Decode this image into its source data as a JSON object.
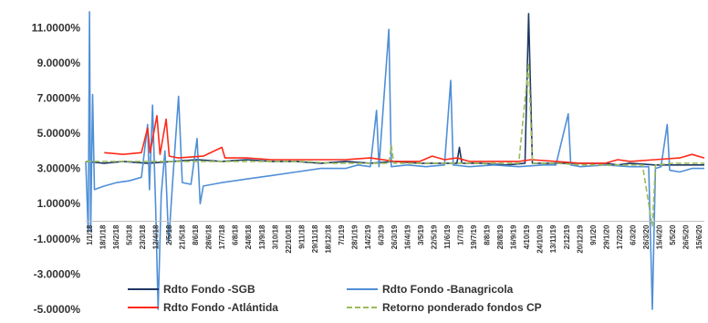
{
  "chart_data": {
    "type": "line",
    "title": "",
    "xlabel": "",
    "ylabel": "",
    "ylim": [
      -5.0,
      12.0
    ],
    "y_ticks": [
      "-5.0000%",
      "-3.0000%",
      "-1.0000%",
      "1.0000%",
      "3.0000%",
      "5.0000%",
      "7.0000%",
      "9.0000%",
      "11.0000%"
    ],
    "x_tick_labels": [
      "1/1/18",
      "18/1/18",
      "16/2/18",
      "5/3/18",
      "23/3/18",
      "12/4/18",
      "2/5/18",
      "21/5/18",
      "8/6/18",
      "28/6/18",
      "17/7/18",
      "6/8/18",
      "24/8/18",
      "13/9/18",
      "3/10/18",
      "22/10/18",
      "9/11/18",
      "29/11/18",
      "18/12/18",
      "7/1/19",
      "28/1/19",
      "14/2/19",
      "6/3/19",
      "26/3/19",
      "16/4/19",
      "3/5/19",
      "22/5/19",
      "11/6/19",
      "1/7/19",
      "19/7/19",
      "8/8/19",
      "28/8/19",
      "16/9/19",
      "4/10/19",
      "24/10/19",
      "13/11/19",
      "2/12/19",
      "20/12/19",
      "9/1/20",
      "29/1/20",
      "17/2/20",
      "6/3/20",
      "26/3/20",
      "15/4/20",
      "5/5/20",
      "26/5/20",
      "15/6/20"
    ],
    "grid": false,
    "legend_position": "bottom",
    "series": [
      {
        "name": "Rdto Fondo -SGB",
        "color": "#1f3864",
        "points": [
          [
            0,
            3.4
          ],
          [
            3,
            3.3
          ],
          [
            6,
            3.4
          ],
          [
            10,
            3.3
          ],
          [
            14,
            3.4
          ],
          [
            18,
            3.5
          ],
          [
            22,
            3.4
          ],
          [
            26,
            3.5
          ],
          [
            30,
            3.4
          ],
          [
            34,
            3.4
          ],
          [
            38,
            3.3
          ],
          [
            42,
            3.4
          ],
          [
            46,
            3.3
          ],
          [
            50,
            3.4
          ],
          [
            54,
            3.3
          ],
          [
            58,
            3.3
          ],
          [
            60,
            3.3
          ],
          [
            60.4,
            4.2
          ],
          [
            60.8,
            3.3
          ],
          [
            64,
            3.3
          ],
          [
            68,
            3.2
          ],
          [
            71,
            3.3
          ],
          [
            71.6,
            11.8
          ],
          [
            72.2,
            3.3
          ],
          [
            76,
            3.3
          ],
          [
            80,
            3.3
          ],
          [
            84,
            3.3
          ],
          [
            86,
            3.2
          ],
          [
            88,
            3.3
          ],
          [
            92,
            3.2
          ],
          [
            96,
            3.2
          ],
          [
            100,
            3.2
          ]
        ]
      },
      {
        "name": "Rdto Fondo -Banagricola",
        "color": "#4f8fd6",
        "points": [
          [
            0,
            3.4
          ],
          [
            0.4,
            -0.6
          ],
          [
            0.6,
            11.9
          ],
          [
            0.8,
            -0.6
          ],
          [
            1.1,
            7.2
          ],
          [
            1.4,
            1.8
          ],
          [
            3,
            2.0
          ],
          [
            5,
            2.2
          ],
          [
            7,
            2.3
          ],
          [
            9,
            2.5
          ],
          [
            10,
            5.5
          ],
          [
            10.3,
            1.8
          ],
          [
            10.8,
            6.6
          ],
          [
            11.3,
            0.8
          ],
          [
            11.7,
            -5.0
          ],
          [
            12.2,
            1.5
          ],
          [
            12.8,
            4.0
          ],
          [
            13.4,
            -1.2
          ],
          [
            14,
            2.0
          ],
          [
            15,
            7.1
          ],
          [
            15.6,
            2.2
          ],
          [
            17,
            2.1
          ],
          [
            18,
            4.7
          ],
          [
            18.5,
            1.0
          ],
          [
            19,
            2.0
          ],
          [
            22,
            2.2
          ],
          [
            26,
            2.4
          ],
          [
            30,
            2.6
          ],
          [
            34,
            2.8
          ],
          [
            38,
            3.0
          ],
          [
            42,
            3.0
          ],
          [
            44,
            3.2
          ],
          [
            46,
            3.1
          ],
          [
            47,
            6.3
          ],
          [
            47.4,
            3.1
          ],
          [
            49,
            10.9
          ],
          [
            49.4,
            3.1
          ],
          [
            52,
            3.2
          ],
          [
            55,
            3.1
          ],
          [
            58,
            3.2
          ],
          [
            59,
            8.0
          ],
          [
            59.4,
            3.2
          ],
          [
            62,
            3.1
          ],
          [
            66,
            3.2
          ],
          [
            70,
            3.1
          ],
          [
            74,
            3.2
          ],
          [
            76,
            3.2
          ],
          [
            78,
            6.1
          ],
          [
            78.4,
            3.2
          ],
          [
            80,
            3.1
          ],
          [
            84,
            3.2
          ],
          [
            88,
            3.1
          ],
          [
            91,
            3.1
          ],
          [
            91.6,
            -5.0
          ],
          [
            92.1,
            3.0
          ],
          [
            93,
            3.1
          ],
          [
            94,
            5.5
          ],
          [
            94.4,
            2.9
          ],
          [
            96,
            2.8
          ],
          [
            98,
            3.0
          ],
          [
            100,
            3.0
          ]
        ]
      },
      {
        "name": "Rdto Fondo -Atlántida",
        "color": "#ff2a1a",
        "points": [
          [
            3,
            3.9
          ],
          [
            6,
            3.8
          ],
          [
            9,
            3.9
          ],
          [
            10,
            5.3
          ],
          [
            10.4,
            3.9
          ],
          [
            11.5,
            6.0
          ],
          [
            12,
            3.8
          ],
          [
            13,
            5.8
          ],
          [
            13.5,
            3.7
          ],
          [
            15,
            3.6
          ],
          [
            19,
            3.7
          ],
          [
            22,
            4.2
          ],
          [
            22.5,
            3.6
          ],
          [
            26,
            3.6
          ],
          [
            30,
            3.5
          ],
          [
            34,
            3.5
          ],
          [
            38,
            3.5
          ],
          [
            42,
            3.5
          ],
          [
            46,
            3.6
          ],
          [
            50,
            3.4
          ],
          [
            54,
            3.4
          ],
          [
            56,
            3.7
          ],
          [
            58,
            3.5
          ],
          [
            60,
            3.6
          ],
          [
            62,
            3.4
          ],
          [
            66,
            3.4
          ],
          [
            70,
            3.4
          ],
          [
            72,
            3.5
          ],
          [
            76,
            3.4
          ],
          [
            80,
            3.3
          ],
          [
            84,
            3.3
          ],
          [
            86,
            3.5
          ],
          [
            88,
            3.4
          ],
          [
            92,
            3.5
          ],
          [
            96,
            3.6
          ],
          [
            98,
            3.8
          ],
          [
            100,
            3.6
          ]
        ]
      },
      {
        "name": "Retorno ponderado fondos CP",
        "color": "#9bbb59",
        "dashed": true,
        "points": [
          [
            0,
            3.4
          ],
          [
            5,
            3.4
          ],
          [
            10,
            3.4
          ],
          [
            15,
            3.4
          ],
          [
            20,
            3.4
          ],
          [
            25,
            3.4
          ],
          [
            30,
            3.4
          ],
          [
            35,
            3.4
          ],
          [
            40,
            3.3
          ],
          [
            45,
            3.3
          ],
          [
            49,
            3.3
          ],
          [
            49.4,
            4.3
          ],
          [
            49.8,
            3.3
          ],
          [
            55,
            3.3
          ],
          [
            60,
            3.3
          ],
          [
            65,
            3.3
          ],
          [
            70,
            3.3
          ],
          [
            71.6,
            9.0
          ],
          [
            72.2,
            3.3
          ],
          [
            76,
            3.3
          ],
          [
            80,
            3.2
          ],
          [
            85,
            3.2
          ],
          [
            90,
            3.2
          ],
          [
            91.6,
            -0.3
          ],
          [
            92.1,
            3.2
          ],
          [
            95,
            3.3
          ],
          [
            100,
            3.3
          ]
        ]
      }
    ]
  }
}
